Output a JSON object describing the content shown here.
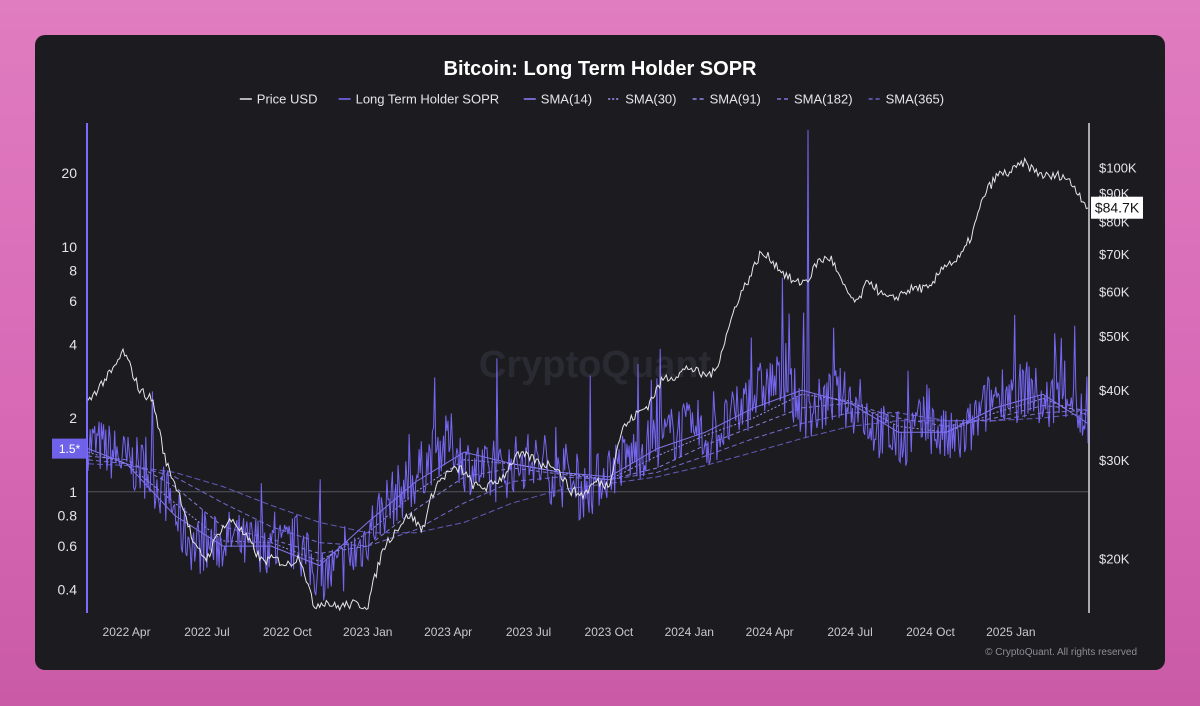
{
  "chart_data": {
    "type": "line",
    "title": "Bitcoin: Long Term Holder SOPR",
    "legend": [
      {
        "label": "Price USD",
        "style": "solid",
        "color": "#e6e6ea"
      },
      {
        "label": "Long Term Holder SOPR",
        "style": "solid",
        "color": "#7b6cff"
      },
      {
        "label": "SMA(14)",
        "style": "solid",
        "color": "#8c80ff"
      },
      {
        "label": "SMA(30)",
        "style": "dotted",
        "color": "#a59cff"
      },
      {
        "label": "SMA(91)",
        "style": "dashed",
        "color": "#9088f0"
      },
      {
        "label": "SMA(182)",
        "style": "dashed",
        "color": "#7d74e0"
      },
      {
        "label": "SMA(365)",
        "style": "dashed",
        "color": "#6a62cc"
      }
    ],
    "x_range": [
      2022.13,
      2025.24
    ],
    "x_ticks": [
      {
        "label": "2022 Apr",
        "t": 2022.25
      },
      {
        "label": "2022 Jul",
        "t": 2022.5
      },
      {
        "label": "2022 Oct",
        "t": 2022.75
      },
      {
        "label": "2023 Jan",
        "t": 2023.0
      },
      {
        "label": "2023 Apr",
        "t": 2023.25
      },
      {
        "label": "2023 Jul",
        "t": 2023.5
      },
      {
        "label": "2023 Oct",
        "t": 2023.75
      },
      {
        "label": "2024 Jan",
        "t": 2024.0
      },
      {
        "label": "2024 Apr",
        "t": 2024.25
      },
      {
        "label": "2024 Jul",
        "t": 2024.5
      },
      {
        "label": "2024 Oct",
        "t": 2024.75
      },
      {
        "label": "2025 Jan",
        "t": 2025.0
      }
    ],
    "left_axis": {
      "scale": "log",
      "range": [
        0.32,
        32
      ],
      "ticks": [
        {
          "v": 20,
          "label": "20"
        },
        {
          "v": 10,
          "label": "10"
        },
        {
          "v": 8,
          "label": "8"
        },
        {
          "v": 6,
          "label": "6"
        },
        {
          "v": 4,
          "label": "4"
        },
        {
          "v": 2,
          "label": "2"
        },
        {
          "v": 1,
          "label": "1"
        },
        {
          "v": 0.8,
          "label": "0.8"
        },
        {
          "v": 0.6,
          "label": "0.6"
        },
        {
          "v": 0.4,
          "label": "0.4"
        }
      ],
      "current_value_label": "1.5*",
      "current_value": 1.5
    },
    "right_axis": {
      "scale": "log",
      "range": [
        16000,
        120000
      ],
      "ticks": [
        {
          "v": 100000,
          "label": "$100K"
        },
        {
          "v": 90000,
          "label": "$90K"
        },
        {
          "v": 80000,
          "label": "$80K"
        },
        {
          "v": 70000,
          "label": "$70K"
        },
        {
          "v": 60000,
          "label": "$60K"
        },
        {
          "v": 50000,
          "label": "$50K"
        },
        {
          "v": 40000,
          "label": "$40K"
        },
        {
          "v": 30000,
          "label": "$30K"
        },
        {
          "v": 20000,
          "label": "$20K"
        }
      ],
      "current_value_label": "$84.7K",
      "current_value": 84700
    },
    "reference_line": 1,
    "price_series": {
      "name": "Price USD",
      "t": [
        2022.13,
        2022.17,
        2022.21,
        2022.24,
        2022.29,
        2022.33,
        2022.37,
        2022.42,
        2022.46,
        2022.5,
        2022.54,
        2022.58,
        2022.63,
        2022.67,
        2022.71,
        2022.75,
        2022.79,
        2022.83,
        2022.87,
        2022.9,
        2022.95,
        2023.0,
        2023.05,
        2023.1,
        2023.13,
        2023.17,
        2023.21,
        2023.25,
        2023.29,
        2023.33,
        2023.37,
        2023.42,
        2023.46,
        2023.5,
        2023.54,
        2023.58,
        2023.63,
        2023.67,
        2023.71,
        2023.75,
        2023.79,
        2023.83,
        2023.87,
        2023.92,
        2023.96,
        2024.0,
        2024.04,
        2024.08,
        2024.12,
        2024.15,
        2024.19,
        2024.22,
        2024.25,
        2024.29,
        2024.33,
        2024.37,
        2024.4,
        2024.44,
        2024.48,
        2024.52,
        2024.56,
        2024.6,
        2024.63,
        2024.67,
        2024.71,
        2024.75,
        2024.79,
        2024.83,
        2024.85,
        2024.88,
        2024.92,
        2024.96,
        2025.0,
        2025.04,
        2025.08,
        2025.12,
        2025.16,
        2025.2,
        2025.24
      ],
      "v": [
        38000,
        41000,
        43500,
        47000,
        40000,
        38500,
        30000,
        25500,
        21000,
        20000,
        22500,
        23500,
        21500,
        19800,
        20000,
        19500,
        20200,
        16500,
        16800,
        16400,
        16600,
        16500,
        21000,
        23000,
        24000,
        22500,
        27000,
        28500,
        29000,
        27000,
        26800,
        28000,
        30500,
        30500,
        29500,
        29500,
        26500,
        26000,
        27500,
        27000,
        34000,
        36000,
        37500,
        42000,
        42500,
        44000,
        42500,
        43000,
        51000,
        58000,
        64000,
        70000,
        69000,
        65000,
        62000,
        63000,
        68000,
        69000,
        61000,
        57000,
        63000,
        59000,
        58000,
        60000,
        61000,
        60500,
        67000,
        68000,
        70000,
        76000,
        90000,
        97000,
        98000,
        102000,
        98000,
        96000,
        97000,
        92000,
        84700
      ]
    },
    "sopr_series": {
      "name": "Long Term Holder SOPR",
      "t": [
        2022.13,
        2022.18,
        2022.22,
        2022.26,
        2022.3,
        2022.34,
        2022.38,
        2022.42,
        2022.46,
        2022.5,
        2022.54,
        2022.58,
        2022.62,
        2022.66,
        2022.7,
        2022.74,
        2022.78,
        2022.82,
        2022.86,
        2022.9,
        2022.94,
        2022.98,
        2023.02,
        2023.06,
        2023.1,
        2023.14,
        2023.18,
        2023.22,
        2023.26,
        2023.3,
        2023.34,
        2023.38,
        2023.42,
        2023.46,
        2023.5,
        2023.54,
        2023.58,
        2023.62,
        2023.66,
        2023.7,
        2023.74,
        2023.78,
        2023.82,
        2023.86,
        2023.9,
        2023.94,
        2023.98,
        2024.02,
        2024.06,
        2024.1,
        2024.14,
        2024.18,
        2024.22,
        2024.26,
        2024.3,
        2024.34,
        2024.38,
        2024.42,
        2024.46,
        2024.5,
        2024.54,
        2024.58,
        2024.62,
        2024.66,
        2024.7,
        2024.74,
        2024.78,
        2024.82,
        2024.86,
        2024.9,
        2024.94,
        2024.98,
        2025.02,
        2025.06,
        2025.1,
        2025.14,
        2025.18,
        2025.22,
        2025.24
      ],
      "v": [
        1.6,
        1.5,
        1.4,
        1.3,
        1.25,
        1.1,
        0.95,
        0.7,
        0.6,
        0.6,
        0.62,
        0.65,
        0.6,
        0.62,
        0.6,
        0.58,
        0.62,
        0.5,
        0.45,
        0.48,
        0.52,
        0.6,
        0.75,
        0.9,
        1.0,
        1.1,
        1.3,
        1.5,
        1.6,
        1.3,
        1.25,
        1.15,
        1.2,
        1.3,
        1.35,
        1.25,
        1.15,
        1.1,
        1.0,
        1.05,
        1.2,
        1.3,
        1.4,
        1.5,
        1.6,
        1.7,
        1.8,
        1.7,
        1.6,
        1.8,
        2.0,
        2.3,
        2.6,
        2.8,
        2.7,
        2.3,
        2.1,
        2.3,
        2.5,
        2.3,
        2.1,
        1.8,
        1.7,
        1.6,
        1.8,
        1.9,
        1.7,
        1.6,
        1.7,
        2.0,
        2.4,
        2.6,
        2.5,
        2.7,
        2.2,
        2.4,
        2.6,
        2.0,
        1.5
      ]
    },
    "sma_series": [
      {
        "name": "SMA(14)",
        "t": [
          2022.13,
          2022.25,
          2022.4,
          2022.55,
          2022.7,
          2022.85,
          2023.0,
          2023.15,
          2023.3,
          2023.45,
          2023.6,
          2023.75,
          2023.9,
          2024.05,
          2024.2,
          2024.35,
          2024.5,
          2024.65,
          2024.8,
          2024.95,
          2025.1,
          2025.24
        ],
        "v": [
          1.5,
          1.3,
          0.8,
          0.6,
          0.6,
          0.5,
          0.75,
          1.1,
          1.45,
          1.3,
          1.2,
          1.15,
          1.5,
          1.75,
          2.2,
          2.6,
          2.3,
          1.75,
          1.75,
          2.2,
          2.5,
          1.9
        ]
      },
      {
        "name": "SMA(30)",
        "t": [
          2022.13,
          2022.25,
          2022.4,
          2022.55,
          2022.7,
          2022.85,
          2023.0,
          2023.15,
          2023.3,
          2023.45,
          2023.6,
          2023.75,
          2023.9,
          2024.05,
          2024.2,
          2024.35,
          2024.5,
          2024.65,
          2024.8,
          2024.95,
          2025.1,
          2025.24
        ],
        "v": [
          1.45,
          1.3,
          0.9,
          0.63,
          0.62,
          0.52,
          0.68,
          1.0,
          1.35,
          1.3,
          1.2,
          1.12,
          1.4,
          1.7,
          2.0,
          2.5,
          2.35,
          1.85,
          1.75,
          2.1,
          2.4,
          2.05
        ]
      },
      {
        "name": "SMA(91)",
        "t": [
          2022.13,
          2022.25,
          2022.4,
          2022.55,
          2022.7,
          2022.85,
          2023.0,
          2023.15,
          2023.3,
          2023.45,
          2023.6,
          2023.75,
          2023.9,
          2024.05,
          2024.2,
          2024.35,
          2024.5,
          2024.65,
          2024.8,
          2024.95,
          2025.1,
          2025.24
        ],
        "v": [
          1.4,
          1.35,
          1.05,
          0.72,
          0.64,
          0.56,
          0.6,
          0.85,
          1.15,
          1.25,
          1.18,
          1.12,
          1.25,
          1.55,
          1.85,
          2.2,
          2.3,
          2.0,
          1.85,
          2.0,
          2.25,
          2.15
        ]
      },
      {
        "name": "SMA(182)",
        "t": [
          2022.13,
          2022.25,
          2022.4,
          2022.55,
          2022.7,
          2022.85,
          2023.0,
          2023.15,
          2023.3,
          2023.45,
          2023.6,
          2023.75,
          2023.9,
          2024.05,
          2024.2,
          2024.35,
          2024.5,
          2024.65,
          2024.8,
          2024.95,
          2025.1,
          2025.24
        ],
        "v": [
          1.35,
          1.3,
          1.15,
          0.9,
          0.72,
          0.62,
          0.6,
          0.7,
          0.9,
          1.1,
          1.15,
          1.12,
          1.2,
          1.4,
          1.65,
          1.9,
          2.1,
          2.1,
          1.95,
          1.95,
          2.1,
          2.15
        ]
      },
      {
        "name": "SMA(365)",
        "t": [
          2022.13,
          2022.25,
          2022.4,
          2022.55,
          2022.7,
          2022.85,
          2023.0,
          2023.15,
          2023.3,
          2023.45,
          2023.6,
          2023.75,
          2023.9,
          2024.05,
          2024.2,
          2024.35,
          2024.5,
          2024.65,
          2024.8,
          2024.95,
          2025.1,
          2025.24
        ],
        "v": [
          1.3,
          1.28,
          1.2,
          1.05,
          0.88,
          0.75,
          0.68,
          0.68,
          0.75,
          0.9,
          1.02,
          1.08,
          1.15,
          1.28,
          1.45,
          1.65,
          1.85,
          1.95,
          1.95,
          1.95,
          2.0,
          2.1
        ]
      }
    ]
  },
  "watermark": "CryptoQuant",
  "copyright": "© CryptoQuant. All rights reserved"
}
